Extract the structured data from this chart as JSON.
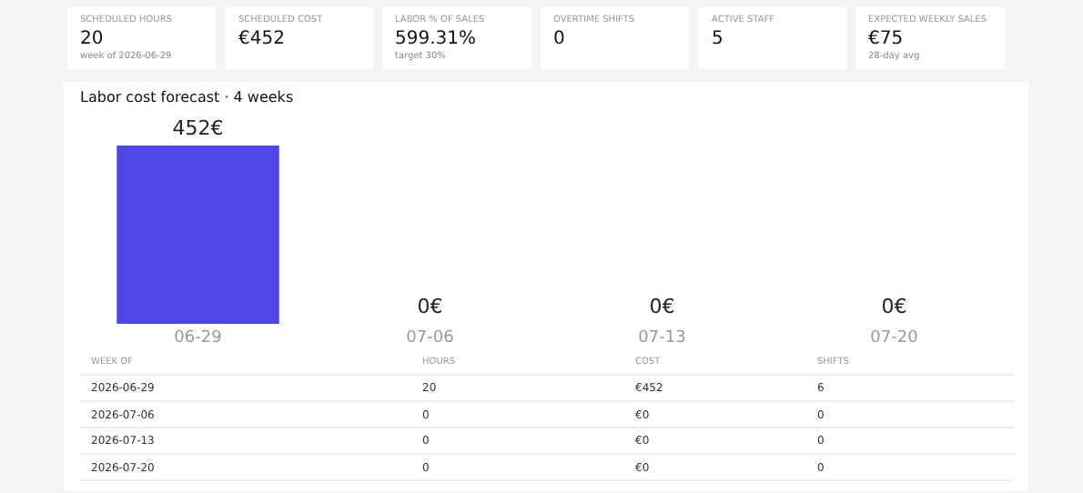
{
  "chart_data": {
    "type": "bar",
    "title": "Labor cost forecast · 4 weeks",
    "categories": [
      "06-29",
      "07-06",
      "07-13",
      "07-20"
    ],
    "values": [
      452,
      0,
      0,
      0
    ],
    "color": "#5046e5",
    "value_labels": [
      "452€",
      "0€",
      "0€",
      "0€"
    ],
    "annotations": [
      "SCHEDULED HOURS\n20\nweek of 2026-06-29",
      "SCHEDULED COST\n€452",
      "LABOR % OF SALES\n599.31%\ntarget 30%",
      "OVERTIME SHIFTS\n0",
      "ACTIVE STAFF\n5",
      "EXPECTED WEEKLY SALES\n€75\n28-day avg",
      "WEEK OF\tHOURS\tCOST\tSHIFTS",
      "2026-06-29\t20\t€452\t6",
      "2026-07-06\t0\t€0\t0",
      "2026-07-13\t0\t€0\t0",
      "2026-07-20\t0\t€0\t0"
    ]
  }
}
